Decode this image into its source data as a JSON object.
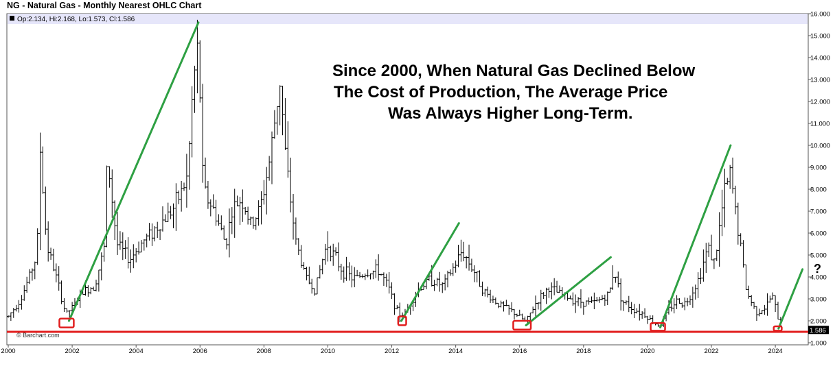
{
  "chart_data": {
    "type": "ohlc",
    "title": "NG - Natural Gas - Monthly Nearest OHLC Chart",
    "legend_text": "Op:2.134, Hi:2.168, Lo:1.573, Cl:1.586",
    "last_price_label": "1.586",
    "watermark": "© Barchart.com",
    "annotation_lines": [
      "Since 2000, When Natural Gas Declined Below",
      "The Cost of Production, The Average Price",
      "Was Always Higher Long-Term."
    ],
    "question_mark": "?",
    "x_ticks": [
      "2000",
      "2002",
      "2004",
      "2006",
      "2008",
      "2010",
      "2012",
      "2014",
      "2016",
      "2018",
      "2020",
      "2022",
      "2024"
    ],
    "y_ticks": [
      "1.000",
      "2.000",
      "3.000",
      "4.000",
      "5.000",
      "6.000",
      "7.000",
      "8.000",
      "9.000",
      "10.000",
      "11.000",
      "12.000",
      "13.000",
      "14.000",
      "15.000",
      "16.000"
    ],
    "xlim": [
      2000.0,
      2024.9
    ],
    "ylim": [
      1.0,
      16.0
    ],
    "cost_of_production_line": 1.5,
    "colors": {
      "bars": "#000000",
      "trend": "#2ea043",
      "support": "#e11d1d",
      "box": "#e11d1d",
      "legend_bg": "#e6e6fa"
    },
    "trend_lines": [
      {
        "x1": 2001.9,
        "y1": 2.0,
        "x2": 2005.95,
        "y2": 15.6
      },
      {
        "x1": 2012.3,
        "y1": 2.0,
        "x2": 2014.1,
        "y2": 6.45
      },
      {
        "x1": 2016.2,
        "y1": 1.8,
        "x2": 2018.85,
        "y2": 4.9
      },
      {
        "x1": 2020.4,
        "y1": 1.7,
        "x2": 2022.6,
        "y2": 10.0
      },
      {
        "x1": 2024.1,
        "y1": 1.65,
        "x2": 2024.85,
        "y2": 4.35
      }
    ],
    "low_boxes": [
      {
        "x1": 2001.6,
        "x2": 2002.05,
        "y1": 1.7,
        "y2": 2.1
      },
      {
        "x1": 2012.2,
        "x2": 2012.45,
        "y1": 1.8,
        "y2": 2.2
      },
      {
        "x1": 2015.8,
        "x2": 2016.35,
        "y1": 1.6,
        "y2": 2.0
      },
      {
        "x1": 2020.1,
        "x2": 2020.55,
        "y1": 1.55,
        "y2": 1.9
      },
      {
        "x1": 2023.95,
        "x2": 2024.2,
        "y1": 1.55,
        "y2": 1.75
      }
    ],
    "series_anchors": [
      [
        2000.0,
        2.2
      ],
      [
        2000.4,
        3.0
      ],
      [
        2000.9,
        5.0
      ],
      [
        2001.0,
        9.8
      ],
      [
        2001.2,
        5.5
      ],
      [
        2001.5,
        4.0
      ],
      [
        2001.8,
        2.3
      ],
      [
        2002.0,
        2.6
      ],
      [
        2002.3,
        3.3
      ],
      [
        2002.7,
        3.6
      ],
      [
        2003.0,
        5.3
      ],
      [
        2003.1,
        9.5
      ],
      [
        2003.4,
        5.5
      ],
      [
        2003.8,
        4.8
      ],
      [
        2004.2,
        5.6
      ],
      [
        2004.8,
        6.5
      ],
      [
        2005.2,
        7.2
      ],
      [
        2005.6,
        8.5
      ],
      [
        2005.8,
        13.0
      ],
      [
        2005.95,
        14.5
      ],
      [
        2006.1,
        8.0
      ],
      [
        2006.5,
        6.8
      ],
      [
        2006.8,
        5.5
      ],
      [
        2007.0,
        7.0
      ],
      [
        2007.3,
        7.6
      ],
      [
        2007.6,
        6.3
      ],
      [
        2007.9,
        7.2
      ],
      [
        2008.2,
        9.5
      ],
      [
        2008.5,
        13.0
      ],
      [
        2008.7,
        9.0
      ],
      [
        2009.0,
        5.6
      ],
      [
        2009.3,
        4.0
      ],
      [
        2009.6,
        3.4
      ],
      [
        2009.9,
        5.2
      ],
      [
        2010.0,
        5.5
      ],
      [
        2010.4,
        4.4
      ],
      [
        2010.8,
        3.9
      ],
      [
        2011.2,
        4.2
      ],
      [
        2011.6,
        4.3
      ],
      [
        2011.9,
        3.5
      ],
      [
        2012.2,
        2.3
      ],
      [
        2012.4,
        2.3
      ],
      [
        2012.8,
        3.4
      ],
      [
        2013.2,
        3.9
      ],
      [
        2013.6,
        3.6
      ],
      [
        2014.0,
        4.6
      ],
      [
        2014.2,
        5.2
      ],
      [
        2014.6,
        4.2
      ],
      [
        2014.9,
        3.3
      ],
      [
        2015.3,
        2.8
      ],
      [
        2015.8,
        2.4
      ],
      [
        2016.2,
        1.95
      ],
      [
        2016.5,
        2.8
      ],
      [
        2016.9,
        3.5
      ],
      [
        2017.3,
        3.2
      ],
      [
        2017.8,
        2.9
      ],
      [
        2018.3,
        2.8
      ],
      [
        2018.8,
        3.2
      ],
      [
        2018.95,
        4.4
      ],
      [
        2019.2,
        2.9
      ],
      [
        2019.6,
        2.5
      ],
      [
        2019.9,
        2.3
      ],
      [
        2020.2,
        1.9
      ],
      [
        2020.4,
        1.8
      ],
      [
        2020.7,
        2.6
      ],
      [
        2020.9,
        2.9
      ],
      [
        2021.2,
        2.8
      ],
      [
        2021.6,
        3.9
      ],
      [
        2021.9,
        5.4
      ],
      [
        2022.1,
        4.6
      ],
      [
        2022.4,
        7.8
      ],
      [
        2022.6,
        8.7
      ],
      [
        2022.8,
        6.5
      ],
      [
        2022.95,
        5.0
      ],
      [
        2023.1,
        3.3
      ],
      [
        2023.4,
        2.4
      ],
      [
        2023.7,
        2.6
      ],
      [
        2023.9,
        3.2
      ],
      [
        2024.05,
        2.3
      ],
      [
        2024.15,
        1.8
      ]
    ]
  }
}
